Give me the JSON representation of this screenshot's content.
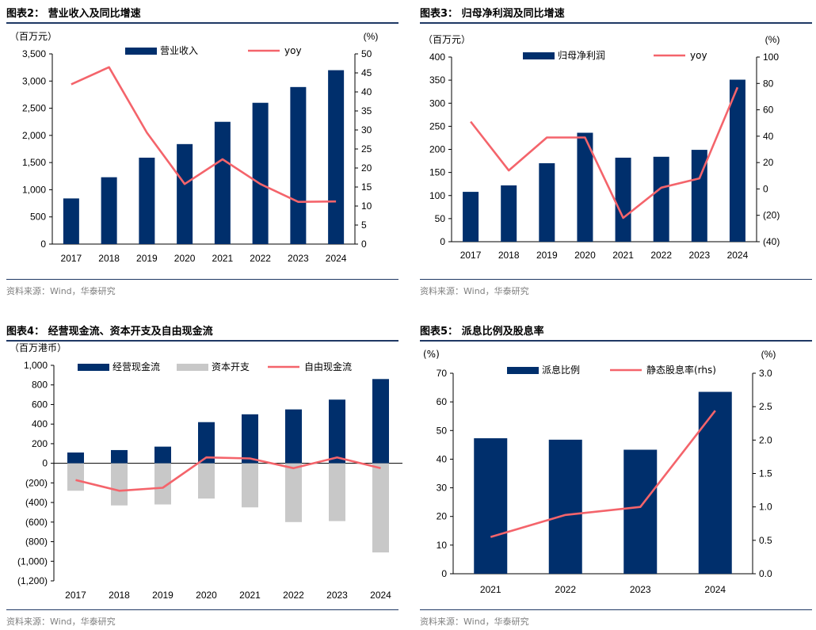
{
  "colors": {
    "bar": "#002f6c",
    "line": "#f4646b",
    "gray": "#c8c8c8",
    "header_rule": "#1f3864",
    "source_text": "#7f7f7f"
  },
  "source_text": "资料来源：Wind，华泰研究",
  "chart_data": [
    {
      "id": "c2",
      "type": "bar+line",
      "title": "图表2：  营业收入及同比增速",
      "left_unit": "（百万元）",
      "right_unit": "(%)",
      "categories": [
        "2017",
        "2018",
        "2019",
        "2020",
        "2021",
        "2022",
        "2023",
        "2024"
      ],
      "left_ticks": [
        "0",
        "500",
        "1,000",
        "1,500",
        "2,000",
        "2,500",
        "3,000",
        "3,500"
      ],
      "right_ticks": [
        "0",
        "5",
        "10",
        "15",
        "20",
        "25",
        "30",
        "35",
        "40",
        "45",
        "50"
      ],
      "ylim_left": [
        0,
        3500
      ],
      "ylim_right": [
        0,
        50
      ],
      "series": [
        {
          "name": "营业收入",
          "kind": "bar",
          "axis": "left",
          "values": [
            840,
            1230,
            1590,
            1840,
            2250,
            2600,
            2890,
            3200
          ]
        },
        {
          "name": "yoy",
          "kind": "line",
          "axis": "right",
          "values": [
            42,
            46.5,
            29.3,
            15.8,
            22.3,
            15.8,
            11.1,
            11.2
          ]
        }
      ]
    },
    {
      "id": "c3",
      "type": "bar+line",
      "title": "图表3：  归母净利润及同比增速",
      "left_unit": "（百万元）",
      "right_unit": "(%)",
      "categories": [
        "2017",
        "2018",
        "2019",
        "2020",
        "2021",
        "2022",
        "2023",
        "2024"
      ],
      "left_ticks": [
        "0",
        "50",
        "100",
        "150",
        "200",
        "250",
        "300",
        "350",
        "400"
      ],
      "right_ticks": [
        "(40)",
        "(20)",
        "0",
        "20",
        "40",
        "60",
        "80",
        "100"
      ],
      "ylim_left": [
        0,
        400
      ],
      "ylim_right": [
        -40,
        100
      ],
      "series": [
        {
          "name": "归母净利润",
          "kind": "bar",
          "axis": "left",
          "values": [
            108,
            122,
            170,
            236,
            182,
            184,
            199,
            351
          ]
        },
        {
          "name": "yoy",
          "kind": "line",
          "axis": "right",
          "values": [
            51,
            14,
            39,
            39,
            -22,
            1,
            8,
            77
          ]
        }
      ]
    },
    {
      "id": "c4",
      "type": "grouped-bar+line",
      "title": "图表4：  经营现金流、资本开支及自由现金流",
      "left_unit": "（百万港币）",
      "categories": [
        "2017",
        "2018",
        "2019",
        "2020",
        "2021",
        "2022",
        "2023",
        "2024"
      ],
      "left_ticks": [
        "(1,200)",
        "(1,000)",
        "(800)",
        "(600)",
        "(400)",
        "(200)",
        "0",
        "200",
        "400",
        "600",
        "800",
        "1,000"
      ],
      "ylim_left": [
        -1200,
        1000
      ],
      "series": [
        {
          "name": "经营现金流",
          "kind": "bar",
          "values": [
            110,
            135,
            170,
            420,
            500,
            550,
            650,
            860
          ]
        },
        {
          "name": "资本开支",
          "kind": "bar",
          "values": [
            -280,
            -430,
            -420,
            -360,
            -450,
            -600,
            -590,
            -910
          ]
        },
        {
          "name": "自由现金流",
          "kind": "line",
          "values": [
            -170,
            -280,
            -250,
            60,
            50,
            -50,
            60,
            -50
          ]
        }
      ]
    },
    {
      "id": "c5",
      "type": "bar+line",
      "title": "图表5：  派息比例及股息率",
      "left_unit": "(%)",
      "right_unit": "(%)",
      "categories": [
        "2021",
        "2022",
        "2023",
        "2024"
      ],
      "left_ticks": [
        "0",
        "10",
        "20",
        "30",
        "40",
        "50",
        "60",
        "70"
      ],
      "right_ticks": [
        "0.0",
        "0.5",
        "1.0",
        "1.5",
        "2.0",
        "2.5",
        "3.0"
      ],
      "ylim_left": [
        0,
        70
      ],
      "ylim_right": [
        0,
        3
      ],
      "series": [
        {
          "name": "派息比例",
          "kind": "bar",
          "axis": "left",
          "values": [
            47.3,
            46.8,
            43.3,
            63.5
          ]
        },
        {
          "name": "静态股息率(rhs)",
          "kind": "line",
          "axis": "right",
          "values": [
            0.55,
            0.88,
            1.0,
            2.44
          ]
        }
      ]
    }
  ]
}
